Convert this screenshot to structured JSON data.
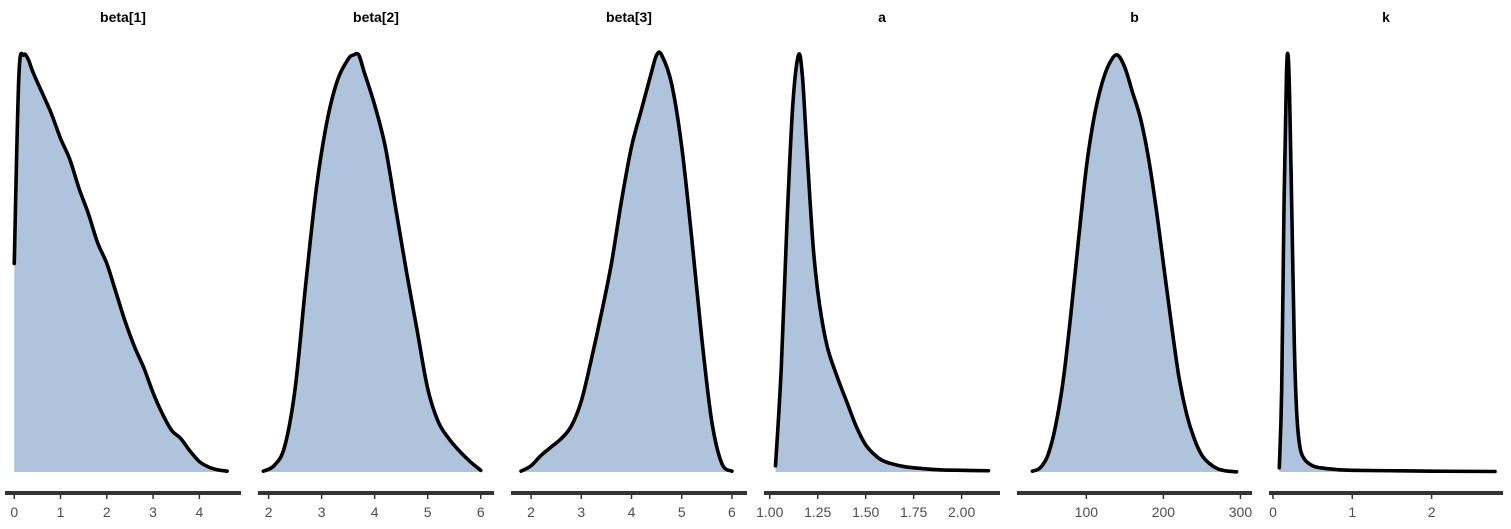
{
  "colors": {
    "fill": "#b0c3dc",
    "line": "#000000",
    "axis": "#333333",
    "tick_text": "#4d4d4d"
  },
  "chart_data": [
    {
      "type": "area",
      "title": "beta[1]",
      "xlim": [
        -0.2,
        4.9
      ],
      "ticks": [
        0,
        1,
        2,
        3,
        4
      ],
      "tick_labels": [
        "0",
        "1",
        "2",
        "3",
        "4"
      ],
      "x": [
        0.0,
        0.1,
        0.2,
        0.3,
        0.4,
        0.6,
        0.8,
        1.0,
        1.2,
        1.4,
        1.6,
        1.8,
        2.0,
        2.2,
        2.4,
        2.6,
        2.8,
        3.0,
        3.2,
        3.4,
        3.6,
        3.8,
        4.0,
        4.2,
        4.4,
        4.6
      ],
      "y": [
        0.5,
        0.95,
        1.0,
        0.99,
        0.96,
        0.91,
        0.86,
        0.8,
        0.75,
        0.68,
        0.62,
        0.55,
        0.5,
        0.43,
        0.36,
        0.3,
        0.25,
        0.19,
        0.14,
        0.1,
        0.08,
        0.05,
        0.025,
        0.012,
        0.005,
        0.002
      ]
    },
    {
      "type": "area",
      "title": "beta[2]",
      "xlim": [
        1.8,
        6.25
      ],
      "ticks": [
        2,
        3,
        4,
        5,
        6
      ],
      "tick_labels": [
        "2",
        "3",
        "4",
        "5",
        "6"
      ],
      "x": [
        1.9,
        2.1,
        2.3,
        2.5,
        2.7,
        2.9,
        3.1,
        3.3,
        3.5,
        3.6,
        3.7,
        3.8,
        4.0,
        4.2,
        4.4,
        4.6,
        4.8,
        5.0,
        5.2,
        5.4,
        5.6,
        5.8,
        6.0
      ],
      "y": [
        0.002,
        0.015,
        0.06,
        0.2,
        0.45,
        0.68,
        0.84,
        0.94,
        0.99,
        1.0,
        1.0,
        0.96,
        0.88,
        0.78,
        0.63,
        0.48,
        0.34,
        0.2,
        0.12,
        0.08,
        0.05,
        0.025,
        0.004
      ]
    },
    {
      "type": "area",
      "title": "beta[3]",
      "xlim": [
        1.6,
        6.3
      ],
      "ticks": [
        2,
        3,
        4,
        5,
        6
      ],
      "tick_labels": [
        "2",
        "3",
        "4",
        "5",
        "6"
      ],
      "x": [
        1.8,
        2.0,
        2.2,
        2.4,
        2.6,
        2.8,
        3.0,
        3.2,
        3.4,
        3.6,
        3.8,
        4.0,
        4.2,
        4.4,
        4.5,
        4.6,
        4.8,
        5.0,
        5.2,
        5.4,
        5.6,
        5.8,
        6.0
      ],
      "y": [
        0.002,
        0.015,
        0.04,
        0.06,
        0.08,
        0.11,
        0.17,
        0.27,
        0.38,
        0.5,
        0.65,
        0.78,
        0.87,
        0.96,
        1.0,
        1.0,
        0.93,
        0.78,
        0.56,
        0.32,
        0.12,
        0.02,
        0.002
      ]
    },
    {
      "type": "area",
      "title": "a",
      "xlim": [
        0.97,
        2.2
      ],
      "ticks": [
        1.0,
        1.25,
        1.5,
        1.75,
        2.0
      ],
      "tick_labels": [
        "1.00",
        "1.25",
        "1.50",
        "1.75",
        "2.00"
      ],
      "x": [
        1.03,
        1.06,
        1.09,
        1.12,
        1.15,
        1.17,
        1.19,
        1.21,
        1.23,
        1.26,
        1.3,
        1.35,
        1.4,
        1.45,
        1.5,
        1.55,
        1.6,
        1.7,
        1.8,
        1.9,
        2.0,
        2.14
      ],
      "y": [
        0.015,
        0.25,
        0.6,
        0.88,
        1.0,
        0.95,
        0.8,
        0.65,
        0.52,
        0.4,
        0.3,
        0.23,
        0.17,
        0.11,
        0.065,
        0.04,
        0.025,
        0.013,
        0.008,
        0.005,
        0.004,
        0.003
      ]
    },
    {
      "type": "area",
      "title": "b",
      "xlim": [
        10,
        315
      ],
      "ticks": [
        100,
        200,
        300
      ],
      "tick_labels": [
        "100",
        "200",
        "300"
      ],
      "x": [
        30,
        40,
        50,
        60,
        70,
        80,
        90,
        100,
        110,
        120,
        130,
        140,
        150,
        160,
        170,
        180,
        190,
        200,
        210,
        220,
        230,
        240,
        250,
        260,
        270,
        280,
        290,
        295
      ],
      "y": [
        0.002,
        0.01,
        0.04,
        0.11,
        0.22,
        0.38,
        0.56,
        0.73,
        0.85,
        0.93,
        0.98,
        1.0,
        0.97,
        0.91,
        0.85,
        0.76,
        0.64,
        0.5,
        0.36,
        0.23,
        0.14,
        0.08,
        0.04,
        0.02,
        0.008,
        0.003,
        0.001,
        0.0005
      ]
    },
    {
      "type": "area",
      "title": "k",
      "xlim": [
        -0.05,
        2.9
      ],
      "ticks": [
        0,
        1,
        2
      ],
      "tick_labels": [
        "0",
        "1",
        "2"
      ],
      "x": [
        0.08,
        0.11,
        0.14,
        0.17,
        0.19,
        0.21,
        0.24,
        0.27,
        0.3,
        0.34,
        0.4,
        0.5,
        0.6,
        0.8,
        1.0,
        1.5,
        2.0,
        2.5,
        2.8
      ],
      "y": [
        0.01,
        0.2,
        0.65,
        0.95,
        1.0,
        0.9,
        0.6,
        0.3,
        0.14,
        0.06,
        0.03,
        0.015,
        0.01,
        0.006,
        0.004,
        0.003,
        0.002,
        0.0015,
        0.0012
      ]
    }
  ]
}
